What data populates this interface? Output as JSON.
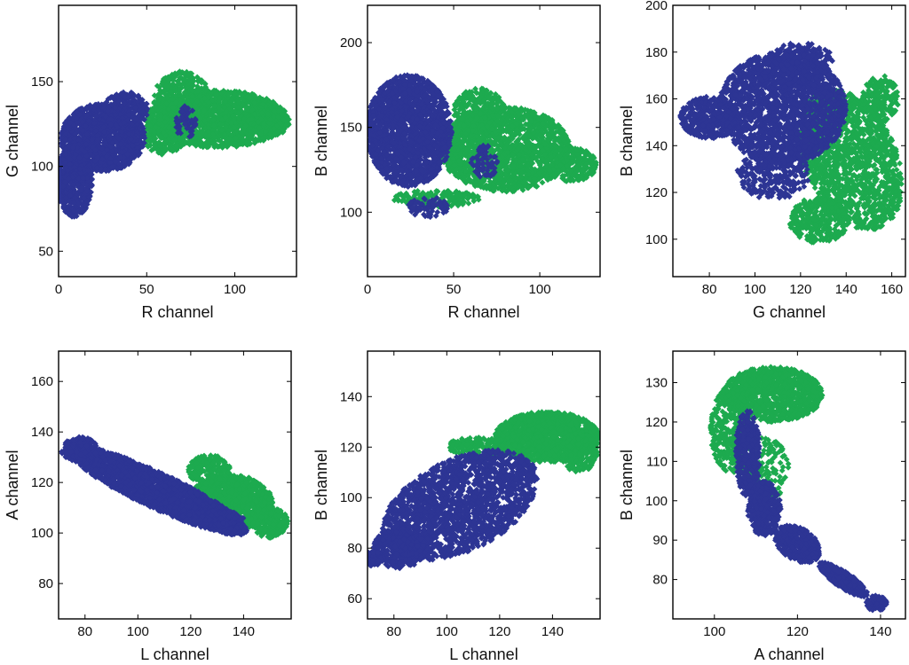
{
  "chart_data": [
    {
      "type": "scatter",
      "xlabel": "R channel",
      "ylabel": "G channel",
      "xlim": [
        0,
        135
      ],
      "ylim": [
        35,
        195
      ],
      "xticks": [
        0,
        50,
        100
      ],
      "yticks": [
        50,
        100,
        150
      ],
      "series": [
        {
          "name": "green",
          "color": "#1daa4f",
          "regions": [
            {
              "cx": 90,
              "cy": 128,
              "rx": 40,
              "ry": 17,
              "n": 1600,
              "angle": 0
            },
            {
              "cx": 70,
              "cy": 140,
              "rx": 16,
              "ry": 16,
              "n": 400,
              "angle": 0
            },
            {
              "cx": 60,
              "cy": 118,
              "rx": 12,
              "ry": 11,
              "n": 250,
              "angle": 0
            },
            {
              "cx": 120,
              "cy": 126,
              "rx": 11,
              "ry": 8,
              "n": 250,
              "angle": 0
            }
          ]
        },
        {
          "name": "blue",
          "color": "#2d3594",
          "regions": [
            {
              "cx": 25,
              "cy": 117,
              "rx": 24,
              "ry": 20,
              "n": 1300,
              "angle": 0
            },
            {
              "cx": 9,
              "cy": 92,
              "rx": 10,
              "ry": 22,
              "n": 600,
              "angle": 0
            },
            {
              "cx": 38,
              "cy": 133,
              "rx": 13,
              "ry": 11,
              "n": 300,
              "angle": 0
            },
            {
              "cx": 72,
              "cy": 126,
              "rx": 6,
              "ry": 10,
              "n": 60,
              "angle": 0
            }
          ]
        }
      ]
    },
    {
      "type": "scatter",
      "xlabel": "R channel",
      "ylabel": "B channel",
      "xlim": [
        0,
        135
      ],
      "ylim": [
        62,
        222
      ],
      "xticks": [
        0,
        50,
        100
      ],
      "yticks": [
        100,
        150,
        200
      ],
      "series": [
        {
          "name": "green",
          "color": "#1daa4f",
          "regions": [
            {
              "cx": 80,
              "cy": 137,
              "rx": 38,
              "ry": 25,
              "n": 1700,
              "angle": 0
            },
            {
              "cx": 65,
              "cy": 160,
              "rx": 15,
              "ry": 13,
              "n": 300,
              "angle": 0
            },
            {
              "cx": 118,
              "cy": 128,
              "rx": 15,
              "ry": 10,
              "n": 250,
              "angle": 0
            },
            {
              "cx": 40,
              "cy": 108,
              "rx": 25,
              "ry": 5,
              "n": 150,
              "angle": 0
            }
          ]
        },
        {
          "name": "blue",
          "color": "#2d3594",
          "regions": [
            {
              "cx": 24,
              "cy": 148,
              "rx": 25,
              "ry": 33,
              "n": 1900,
              "angle": 0
            },
            {
              "cx": 68,
              "cy": 130,
              "rx": 8,
              "ry": 10,
              "n": 70,
              "angle": 0
            },
            {
              "cx": 35,
              "cy": 103,
              "rx": 12,
              "ry": 6,
              "n": 80,
              "angle": 0
            }
          ]
        }
      ]
    },
    {
      "type": "scatter",
      "xlabel": "G channel",
      "ylabel": "B channel",
      "xlim": [
        64,
        166
      ],
      "ylim": [
        84,
        200
      ],
      "xticks": [
        80,
        100,
        120,
        140,
        160
      ],
      "yticks": [
        100,
        120,
        140,
        160,
        180,
        200
      ],
      "series": [
        {
          "name": "green",
          "color": "#1daa4f",
          "regions": [
            {
              "cx": 142,
              "cy": 134,
              "rx": 20,
              "ry": 32,
              "n": 1500,
              "angle": 25
            },
            {
              "cx": 128,
              "cy": 108,
              "rx": 13,
              "ry": 10,
              "n": 300,
              "angle": 0
            },
            {
              "cx": 155,
              "cy": 160,
              "rx": 8,
              "ry": 10,
              "n": 200,
              "angle": 0
            }
          ]
        },
        {
          "name": "blue",
          "color": "#2d3594",
          "regions": [
            {
              "cx": 112,
              "cy": 156,
              "rx": 28,
              "ry": 24,
              "n": 2000,
              "angle": 0
            },
            {
              "cx": 80,
              "cy": 152,
              "rx": 13,
              "ry": 9,
              "n": 350,
              "angle": 0
            },
            {
              "cx": 108,
              "cy": 128,
              "rx": 16,
              "ry": 11,
              "n": 300,
              "angle": 0
            },
            {
              "cx": 120,
              "cy": 176,
              "rx": 15,
              "ry": 8,
              "n": 250,
              "angle": 0
            }
          ]
        }
      ]
    },
    {
      "type": "scatter",
      "xlabel": "L channel",
      "ylabel": "A channel",
      "xlim": [
        70,
        158
      ],
      "ylim": [
        66,
        172
      ],
      "xticks": [
        80,
        100,
        120,
        140
      ],
      "yticks": [
        80,
        100,
        120,
        140,
        160
      ],
      "series": [
        {
          "name": "green",
          "color": "#1daa4f",
          "regions": [
            {
              "cx": 135,
              "cy": 112,
              "rx": 16,
              "ry": 11,
              "n": 1200,
              "angle": 0
            },
            {
              "cx": 150,
              "cy": 104,
              "rx": 7,
              "ry": 6,
              "n": 250,
              "angle": 0
            },
            {
              "cx": 127,
              "cy": 125,
              "rx": 8,
              "ry": 6,
              "n": 200,
              "angle": 0
            }
          ]
        },
        {
          "name": "blue",
          "color": "#2d3594",
          "regions": [
            {
              "cx": 107,
              "cy": 117,
              "rx": 38,
              "ry": 7,
              "n": 2200,
              "angle": -26
            },
            {
              "cx": 78,
              "cy": 133,
              "rx": 7,
              "ry": 5,
              "n": 200,
              "angle": 0
            },
            {
              "cx": 128,
              "cy": 106,
              "rx": 12,
              "ry": 3,
              "n": 300,
              "angle": 0
            }
          ]
        }
      ]
    },
    {
      "type": "scatter",
      "xlabel": "L channel",
      "ylabel": "B channel",
      "xlim": [
        70,
        158
      ],
      "ylim": [
        52,
        158
      ],
      "xticks": [
        80,
        100,
        120,
        140
      ],
      "yticks": [
        60,
        80,
        100,
        120,
        140
      ],
      "series": [
        {
          "name": "green",
          "color": "#1daa4f",
          "regions": [
            {
              "cx": 138,
              "cy": 124,
              "rx": 20,
              "ry": 10,
              "n": 1300,
              "angle": 0
            },
            {
              "cx": 150,
              "cy": 118,
              "rx": 7,
              "ry": 8,
              "n": 200,
              "angle": 0
            },
            {
              "cx": 112,
              "cy": 120,
              "rx": 12,
              "ry": 4,
              "n": 150,
              "angle": 0
            }
          ]
        },
        {
          "name": "blue",
          "color": "#2d3594",
          "regions": [
            {
              "cx": 105,
              "cy": 97,
              "rx": 32,
              "ry": 18,
              "n": 2000,
              "angle": 28
            },
            {
              "cx": 82,
              "cy": 80,
              "rx": 10,
              "ry": 8,
              "n": 300,
              "angle": 0
            },
            {
              "cx": 72,
              "cy": 76,
              "rx": 4,
              "ry": 3,
              "n": 80,
              "angle": 0
            }
          ]
        }
      ]
    },
    {
      "type": "scatter",
      "xlabel": "A channel",
      "ylabel": "B channel",
      "xlim": [
        90,
        146
      ],
      "ylim": [
        70,
        138
      ],
      "xticks": [
        100,
        120,
        140
      ],
      "yticks": [
        80,
        90,
        100,
        110,
        120,
        130
      ],
      "series": [
        {
          "name": "green",
          "color": "#1daa4f",
          "regions": [
            {
              "cx": 114,
              "cy": 127,
              "rx": 12,
              "ry": 7,
              "n": 1100,
              "angle": 0
            },
            {
              "cx": 104,
              "cy": 118,
              "rx": 5,
              "ry": 11,
              "n": 350,
              "angle": 0
            },
            {
              "cx": 112,
              "cy": 108,
              "rx": 6,
              "ry": 8,
              "n": 150,
              "angle": 0
            }
          ]
        },
        {
          "name": "blue",
          "color": "#2d3594",
          "regions": [
            {
              "cx": 108,
              "cy": 112,
              "rx": 3,
              "ry": 11,
              "n": 400,
              "angle": 0
            },
            {
              "cx": 112,
              "cy": 98,
              "rx": 4,
              "ry": 7,
              "n": 350,
              "angle": 0
            },
            {
              "cx": 120,
              "cy": 89,
              "rx": 6,
              "ry": 4,
              "n": 400,
              "angle": -35
            },
            {
              "cx": 131,
              "cy": 80,
              "rx": 7,
              "ry": 2,
              "n": 350,
              "angle": -35
            },
            {
              "cx": 139,
              "cy": 74,
              "rx": 2.5,
              "ry": 2,
              "n": 100,
              "angle": 0
            }
          ]
        }
      ]
    }
  ]
}
